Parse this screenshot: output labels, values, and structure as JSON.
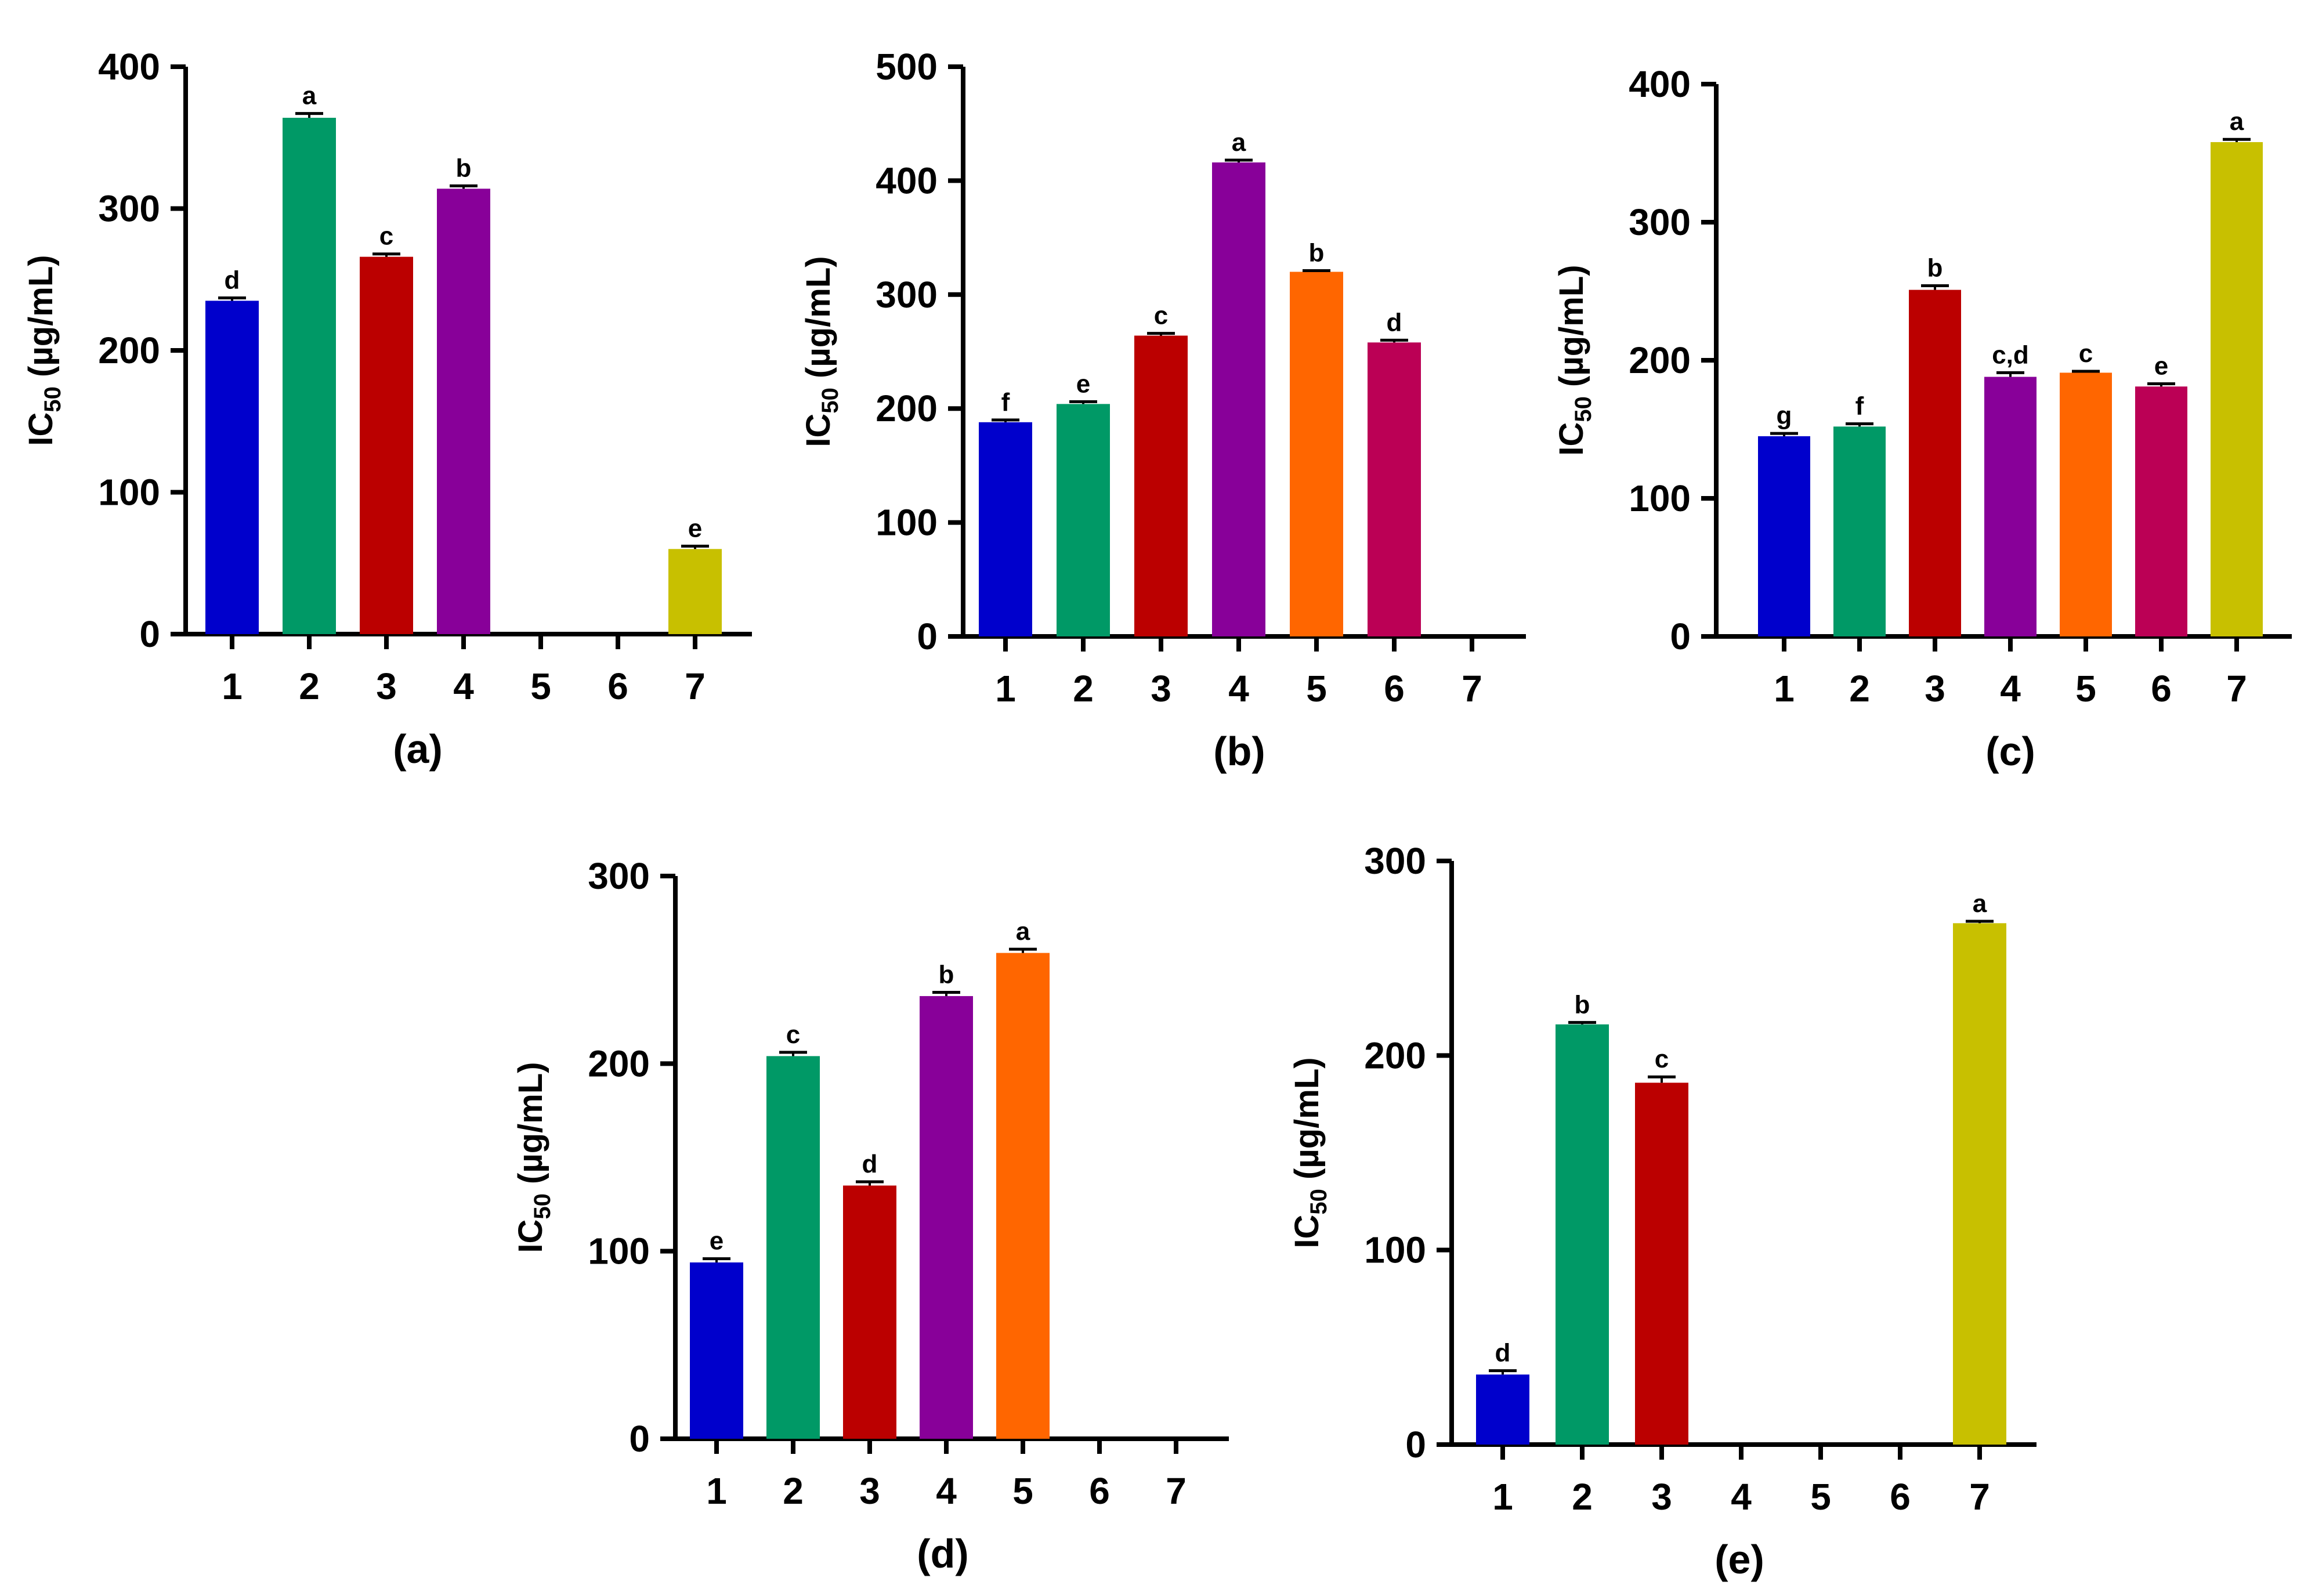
{
  "colors": {
    "1": "#0000CC",
    "2": "#009966",
    "3": "#BB0000",
    "4": "#880099",
    "5": "#FF6600",
    "6": "#BB0055",
    "7": "#C8C000"
  },
  "chart_data": [
    {
      "type": "bar",
      "panel_label": "(a)",
      "ylabel_main": "IC",
      "ylabel_sub": "50",
      "ylabel_unit": " (µg/mL)",
      "categories": [
        "1",
        "2",
        "3",
        "4",
        "5",
        "6",
        "7"
      ],
      "values": [
        235,
        364,
        266,
        314,
        0,
        0,
        60
      ],
      "errors": [
        2,
        3,
        2,
        2,
        0,
        0,
        2
      ],
      "letters": [
        "d",
        "a",
        "c",
        "b",
        "",
        "",
        "e"
      ],
      "yticks": [
        0,
        100,
        200,
        300,
        400
      ],
      "ylim": [
        0,
        400
      ]
    },
    {
      "type": "bar",
      "panel_label": "(b)",
      "ylabel_main": "IC",
      "ylabel_sub": "50",
      "ylabel_unit": " (µg/mL)",
      "categories": [
        "1",
        "2",
        "3",
        "4",
        "5",
        "6",
        "7"
      ],
      "values": [
        188,
        204,
        264,
        416,
        320,
        258,
        0
      ],
      "errors": [
        2,
        2,
        2,
        2,
        1,
        2,
        0
      ],
      "letters": [
        "f",
        "e",
        "c",
        "a",
        "b",
        "d",
        ""
      ],
      "yticks": [
        0,
        100,
        200,
        300,
        400,
        500
      ],
      "ylim": [
        0,
        500
      ]
    },
    {
      "type": "bar",
      "panel_label": "(c)",
      "ylabel_main": "IC",
      "ylabel_sub": "50",
      "ylabel_unit": " (µg/mL)",
      "categories": [
        "1",
        "2",
        "3",
        "4",
        "5",
        "6",
        "7"
      ],
      "values": [
        145,
        152,
        251,
        188,
        191,
        181,
        358
      ],
      "errors": [
        2,
        2,
        3,
        3,
        1,
        2,
        2
      ],
      "letters": [
        "g",
        "f",
        "b",
        "c,d",
        "c",
        "e",
        "a"
      ],
      "yticks": [
        0,
        100,
        200,
        300,
        400
      ],
      "ylim": [
        0,
        400
      ]
    },
    {
      "type": "bar",
      "panel_label": "(d)",
      "ylabel_main": "IC",
      "ylabel_sub": "50",
      "ylabel_unit": " (µg/mL)",
      "categories": [
        "1",
        "2",
        "3",
        "4",
        "5",
        "6",
        "7"
      ],
      "values": [
        94,
        204,
        135,
        236,
        259,
        0,
        0
      ],
      "errors": [
        2,
        2,
        2,
        2,
        2,
        0,
        0
      ],
      "letters": [
        "e",
        "c",
        "d",
        "b",
        "a",
        "",
        ""
      ],
      "yticks": [
        0,
        100,
        200,
        300
      ],
      "ylim": [
        0,
        300
      ]
    },
    {
      "type": "bar",
      "panel_label": "(e)",
      "ylabel_main": "IC",
      "ylabel_sub": "50",
      "ylabel_unit": " (µg/mL)",
      "categories": [
        "1",
        "2",
        "3",
        "4",
        "5",
        "6",
        "7"
      ],
      "values": [
        36,
        216,
        186,
        0,
        0,
        0,
        268
      ],
      "errors": [
        2,
        1,
        3,
        0,
        0,
        0,
        1
      ],
      "letters": [
        "d",
        "b",
        "c",
        "",
        "",
        "",
        "a"
      ],
      "yticks": [
        0,
        100,
        200,
        300
      ],
      "ylim": [
        0,
        300
      ]
    }
  ]
}
